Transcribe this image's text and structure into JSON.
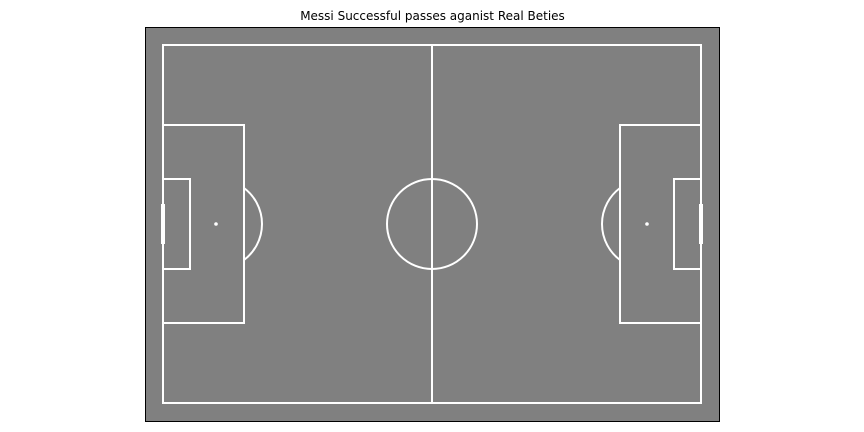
{
  "figure": {
    "title": "Messi Successful passes aganist Real Beties"
  },
  "pitch": {
    "background_color": "#808080",
    "line_color": "#ffffff",
    "frame_color": "#000000",
    "passes_drawn": 0
  }
}
